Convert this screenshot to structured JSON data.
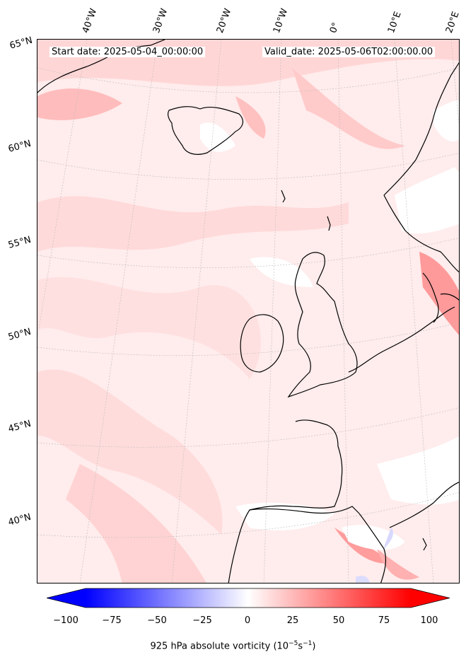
{
  "start_date": "Start date: 2025-05-04_00:00:00",
  "valid_date": "Valid_date: 2025-05-06T02:00:00.00",
  "longitude_labels": [
    "40°W",
    "30°W",
    "20°W",
    "10°W",
    "0°",
    "10°E",
    "20°E"
  ],
  "latitude_labels": [
    "65°N",
    "60°N",
    "55°N",
    "50°N",
    "45°N",
    "40°N"
  ],
  "colorbar": {
    "ticks": [
      "−100",
      "−75",
      "−50",
      "−25",
      "0",
      "25",
      "50",
      "75",
      "100"
    ],
    "label": "925 hPa absolute vorticity (10",
    "label_exp": "−5",
    "label_unit": "s",
    "label_exp2": "−1",
    "label_end": ")",
    "min": -100,
    "max": 100,
    "low_color": "#0000ff",
    "mid_color": "#ffffff",
    "high_color": "#ff0000",
    "extend": "both"
  },
  "map_colors": {
    "background": "#fff3f3",
    "coastline": "#000000",
    "gridline": "#bbbbbb"
  }
}
